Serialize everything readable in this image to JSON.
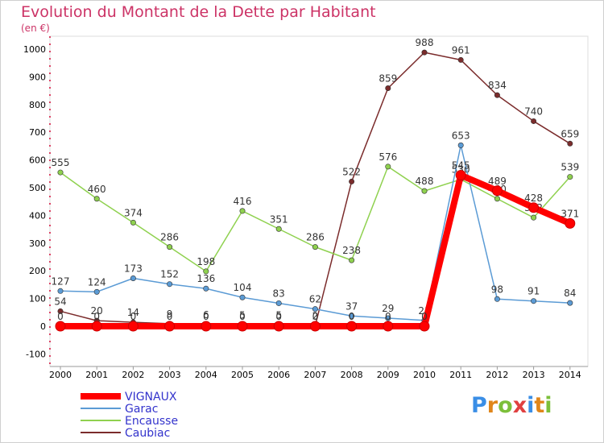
{
  "title": "Evolution du Montant de la Dette par Habitant",
  "subtitle": "(en €)",
  "brand": "Proxiti",
  "chart_data": {
    "type": "line",
    "title": "Evolution du Montant de la Dette par Habitant",
    "ylabel": "(en €)",
    "xlabel": "",
    "ylim": [
      -100,
      1000
    ],
    "yticks": [
      -100,
      0,
      100,
      200,
      300,
      400,
      500,
      600,
      700,
      800,
      900,
      1000
    ],
    "x": [
      "2000",
      "2001",
      "2002",
      "2003",
      "2004",
      "2005",
      "2006",
      "2007",
      "2008",
      "2009",
      "2010",
      "2011",
      "2012",
      "2013",
      "2014"
    ],
    "grid": false,
    "legend": "bottom-left",
    "series": [
      {
        "name": "VIGNAUX",
        "color": "#ff0000",
        "width": 8,
        "values": [
          0,
          0,
          0,
          0,
          0,
          0,
          0,
          0,
          0,
          0,
          0,
          545,
          489,
          428,
          371
        ]
      },
      {
        "name": "Garac",
        "color": "#5b9bd5",
        "width": 1.5,
        "values": [
          127,
          124,
          173,
          152,
          136,
          104,
          83,
          62,
          37,
          29,
          21,
          653,
          98,
          91,
          84
        ]
      },
      {
        "name": "Encausse",
        "color": "#8fd14f",
        "width": 1.5,
        "values": [
          555,
          460,
          374,
          286,
          198,
          416,
          351,
          286,
          238,
          576,
          488,
          530,
          460,
          392,
          539
        ]
      },
      {
        "name": "Caubiac",
        "color": "#7b2c2c",
        "width": 1.5,
        "values": [
          54,
          20,
          14,
          9,
          6,
          5,
          5,
          2,
          522,
          859,
          988,
          961,
          834,
          740,
          659
        ]
      }
    ]
  }
}
